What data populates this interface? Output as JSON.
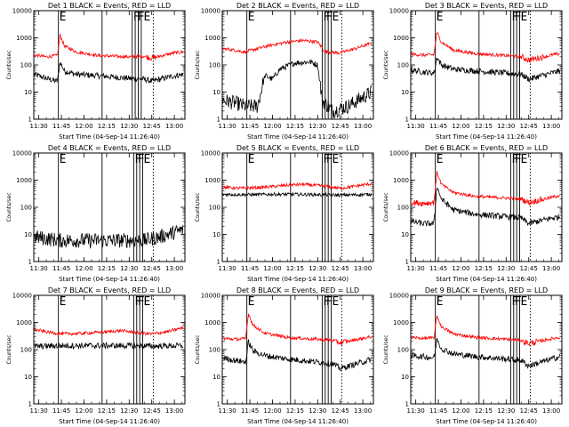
{
  "chart_data": [
    {
      "type": "line",
      "title": "Det 1 BLACK = Events, RED = LLD",
      "ylabel": "Counts/sec",
      "xlabel": "Start Time (04-Sep-14 11:26:40)",
      "x_ticks": [
        "11:30",
        "11:45",
        "12:00",
        "12:15",
        "12:30",
        "12:45",
        "13:00"
      ],
      "y_ticks": [
        "1",
        "10",
        "100",
        "1000",
        "10000"
      ],
      "ylim": [
        1,
        10000
      ],
      "yscale": "log",
      "markers": [
        "E",
        "F",
        "F",
        "E"
      ],
      "marker_x": [
        "11:43",
        "12:32",
        "12:35",
        "12:39"
      ],
      "solid_vlines": [
        "11:43",
        "12:12",
        "12:32",
        "12:34",
        "12:36",
        "12:38"
      ],
      "dotted_vlines": [
        "12:46"
      ],
      "series": [
        {
          "color": "#000000",
          "x": [
            "11:27",
            "11:35",
            "11:42",
            "11:43",
            "11:44",
            "11:47",
            "11:55",
            "12:10",
            "12:30",
            "12:40",
            "12:45",
            "13:00",
            "13:06"
          ],
          "values": [
            45,
            32,
            25,
            40,
            130,
            60,
            45,
            40,
            32,
            30,
            25,
            40,
            45
          ]
        },
        {
          "color": "#ff0000",
          "x": [
            "11:27",
            "11:35",
            "11:42",
            "11:43",
            "11:44",
            "11:47",
            "11:55",
            "12:10",
            "12:30",
            "12:40",
            "12:45",
            "13:00",
            "13:06"
          ],
          "values": [
            230,
            200,
            220,
            350,
            1300,
            500,
            300,
            220,
            200,
            210,
            180,
            280,
            300
          ]
        }
      ]
    },
    {
      "type": "line",
      "title": "Det 2 BLACK = Events, RED = LLD",
      "ylabel": "Counts/sec",
      "xlabel": "Start Time (04-Sep-14 11:26:40)",
      "x_ticks": [
        "11:30",
        "11:45",
        "12:00",
        "12:15",
        "12:30",
        "12:45",
        "13:00"
      ],
      "y_ticks": [
        "1",
        "10",
        "100",
        "1000",
        "10000"
      ],
      "ylim": [
        1,
        10000
      ],
      "yscale": "log",
      "markers": [
        "E",
        "F",
        "F",
        "E"
      ],
      "marker_x": [
        "11:43",
        "12:33",
        "12:35",
        "12:39"
      ],
      "solid_vlines": [
        "11:43",
        "12:12",
        "12:33",
        "12:35",
        "12:37",
        "12:39"
      ],
      "dotted_vlines": [
        "12:46"
      ],
      "series": [
        {
          "color": "#000000",
          "x": [
            "11:27",
            "11:35",
            "11:42",
            "11:50",
            "11:55",
            "12:00",
            "12:05",
            "12:15",
            "12:25",
            "12:30",
            "12:33",
            "12:40",
            "12:50",
            "13:06"
          ],
          "values": [
            5,
            4,
            3,
            3,
            40,
            30,
            70,
            120,
            130,
            100,
            5,
            2,
            3,
            10
          ]
        },
        {
          "color": "#ff0000",
          "x": [
            "11:27",
            "11:35",
            "11:42",
            "11:50",
            "12:00",
            "12:10",
            "12:20",
            "12:30",
            "12:35",
            "12:45",
            "12:55",
            "13:06"
          ],
          "values": [
            400,
            350,
            300,
            400,
            550,
            700,
            800,
            700,
            300,
            280,
            400,
            650
          ]
        }
      ]
    },
    {
      "type": "line",
      "title": "Det 3 BLACK = Events, RED = LLD",
      "ylabel": "Counts/sec",
      "xlabel": "Start Time (04-Sep-14 11:26:40)",
      "x_ticks": [
        "11:30",
        "11:45",
        "12:00",
        "12:15",
        "12:30",
        "12:45",
        "13:00"
      ],
      "y_ticks": [
        "1",
        "10",
        "100",
        "1000",
        "10000"
      ],
      "ylim": [
        1,
        10000
      ],
      "yscale": "log",
      "markers": [
        "E",
        "F",
        "F",
        "E"
      ],
      "marker_x": [
        "11:43",
        "12:33",
        "12:35",
        "12:39"
      ],
      "solid_vlines": [
        "11:43",
        "12:12",
        "12:33",
        "12:35",
        "12:37",
        "12:39"
      ],
      "dotted_vlines": [
        "12:46"
      ],
      "series": [
        {
          "color": "#000000",
          "x": [
            "11:27",
            "11:35",
            "11:42",
            "11:43",
            "11:44",
            "11:47",
            "11:55",
            "12:10",
            "12:30",
            "12:40",
            "12:45",
            "13:00",
            "13:06"
          ],
          "values": [
            65,
            55,
            50,
            80,
            200,
            100,
            70,
            60,
            50,
            45,
            30,
            50,
            60
          ]
        },
        {
          "color": "#ff0000",
          "x": [
            "11:27",
            "11:35",
            "11:42",
            "11:43",
            "11:44",
            "11:47",
            "11:55",
            "12:10",
            "12:30",
            "12:40",
            "12:45",
            "13:00",
            "13:06"
          ],
          "values": [
            250,
            230,
            240,
            600,
            1600,
            700,
            350,
            260,
            220,
            200,
            150,
            230,
            260
          ]
        }
      ]
    },
    {
      "type": "line",
      "title": "Det 4 BLACK = Events, RED = LLD",
      "ylabel": "Counts/sec",
      "xlabel": "Start Time (04-Sep-14 11:26:40)",
      "x_ticks": [
        "11:30",
        "11:45",
        "12:00",
        "12:15",
        "12:30",
        "12:45",
        "13:00"
      ],
      "y_ticks": [
        "1",
        "10",
        "100",
        "1000",
        "10000"
      ],
      "ylim": [
        1,
        10000
      ],
      "yscale": "log",
      "markers": [
        "E",
        "F",
        "F",
        "E"
      ],
      "marker_x": [
        "11:43",
        "12:33",
        "12:35",
        "12:39"
      ],
      "solid_vlines": [
        "11:43",
        "12:12",
        "12:33",
        "12:35",
        "12:37",
        "12:39"
      ],
      "dotted_vlines": [
        "12:46"
      ],
      "series": [
        {
          "color": "#000000",
          "x": [
            "11:27",
            "11:35",
            "11:45",
            "12:00",
            "12:15",
            "12:30",
            "12:40",
            "12:50",
            "13:00",
            "13:06"
          ],
          "values": [
            8,
            7,
            6,
            6,
            6,
            6,
            6,
            8,
            12,
            15
          ]
        }
      ]
    },
    {
      "type": "line",
      "title": "Det 5 BLACK = Events, RED = LLD",
      "ylabel": "Counts/sec",
      "xlabel": "Start Time (04-Sep-14 11:26:40)",
      "x_ticks": [
        "11:30",
        "11:45",
        "12:00",
        "12:15",
        "12:30",
        "12:45",
        "13:00"
      ],
      "y_ticks": [
        "1",
        "10",
        "100",
        "1000",
        "10000"
      ],
      "ylim": [
        1,
        10000
      ],
      "yscale": "log",
      "markers": [
        "E",
        "F",
        "F",
        "E"
      ],
      "marker_x": [
        "11:43",
        "12:33",
        "12:35",
        "12:39"
      ],
      "solid_vlines": [
        "11:43",
        "12:12",
        "12:33",
        "12:35",
        "12:37",
        "12:39"
      ],
      "dotted_vlines": [
        "12:46"
      ],
      "series": [
        {
          "color": "#000000",
          "x": [
            "11:27",
            "11:45",
            "12:00",
            "12:15",
            "12:30",
            "12:45",
            "13:06"
          ],
          "values": [
            300,
            290,
            300,
            300,
            290,
            280,
            300
          ]
        },
        {
          "color": "#ff0000",
          "x": [
            "11:27",
            "11:40",
            "11:55",
            "12:10",
            "12:20",
            "12:35",
            "12:45",
            "12:55",
            "13:06"
          ],
          "values": [
            550,
            500,
            550,
            650,
            700,
            600,
            500,
            600,
            750
          ]
        }
      ]
    },
    {
      "type": "line",
      "title": "Det 6 BLACK = Events, RED = LLD",
      "ylabel": "Counts/sec",
      "xlabel": "Start Time (04-Sep-14 11:26:40)",
      "x_ticks": [
        "11:30",
        "11:45",
        "12:00",
        "12:15",
        "12:30",
        "12:45",
        "13:00"
      ],
      "y_ticks": [
        "1",
        "10",
        "100",
        "1000",
        "10000"
      ],
      "ylim": [
        1,
        10000
      ],
      "yscale": "log",
      "markers": [
        "E",
        "F",
        "F",
        "E"
      ],
      "marker_x": [
        "11:43",
        "12:33",
        "12:35",
        "12:39"
      ],
      "solid_vlines": [
        "11:43",
        "12:12",
        "12:33",
        "12:35",
        "12:37",
        "12:39"
      ],
      "dotted_vlines": [
        "12:46"
      ],
      "series": [
        {
          "color": "#000000",
          "x": [
            "11:27",
            "11:35",
            "11:42",
            "11:43",
            "11:44",
            "11:47",
            "11:55",
            "12:10",
            "12:30",
            "12:40",
            "12:45",
            "13:00",
            "13:06"
          ],
          "values": [
            30,
            25,
            25,
            100,
            600,
            200,
            80,
            55,
            45,
            40,
            25,
            40,
            45
          ]
        },
        {
          "color": "#ff0000",
          "x": [
            "11:27",
            "11:35",
            "11:42",
            "11:43",
            "11:44",
            "11:47",
            "11:55",
            "12:10",
            "12:30",
            "12:40",
            "12:45",
            "13:00",
            "13:06"
          ],
          "values": [
            150,
            140,
            150,
            500,
            2000,
            700,
            350,
            250,
            220,
            200,
            150,
            230,
            280
          ]
        }
      ]
    },
    {
      "type": "line",
      "title": "Det 7 BLACK = Events, RED = LLD",
      "ylabel": "Counts/sec",
      "xlabel": "Start Time (04-Sep-14 11:26:40)",
      "x_ticks": [
        "11:30",
        "11:45",
        "12:00",
        "12:15",
        "12:30",
        "12:45",
        "13:00"
      ],
      "y_ticks": [
        "1",
        "10",
        "100",
        "1000",
        "10000"
      ],
      "ylim": [
        1,
        10000
      ],
      "yscale": "log",
      "markers": [
        "E",
        "F",
        "F",
        "E"
      ],
      "marker_x": [
        "11:43",
        "12:33",
        "12:35",
        "12:39"
      ],
      "solid_vlines": [
        "11:43",
        "12:12",
        "12:33",
        "12:35",
        "12:37",
        "12:39"
      ],
      "dotted_vlines": [
        "12:46"
      ],
      "series": [
        {
          "color": "#000000",
          "x": [
            "11:27",
            "11:45",
            "12:00",
            "12:15",
            "12:30",
            "12:45",
            "13:06"
          ],
          "values": [
            130,
            140,
            140,
            140,
            140,
            135,
            140
          ]
        },
        {
          "color": "#ff0000",
          "x": [
            "11:27",
            "11:35",
            "11:45",
            "12:00",
            "12:15",
            "12:25",
            "12:35",
            "12:45",
            "12:55",
            "13:06"
          ],
          "values": [
            550,
            450,
            380,
            400,
            450,
            500,
            420,
            380,
            450,
            650
          ]
        }
      ]
    },
    {
      "type": "line",
      "title": "Det 8 BLACK = Events, RED = LLD",
      "ylabel": "Counts/sec",
      "xlabel": "Start Time (04-Sep-14 11:26:40)",
      "x_ticks": [
        "11:30",
        "11:45",
        "12:00",
        "12:15",
        "12:30",
        "12:45",
        "13:00"
      ],
      "y_ticks": [
        "1",
        "10",
        "100",
        "1000",
        "10000"
      ],
      "ylim": [
        1,
        10000
      ],
      "yscale": "log",
      "markers": [
        "E",
        "F",
        "F",
        "E"
      ],
      "marker_x": [
        "11:43",
        "12:33",
        "12:35",
        "12:39"
      ],
      "solid_vlines": [
        "11:43",
        "12:12",
        "12:33",
        "12:35",
        "12:37",
        "12:39"
      ],
      "dotted_vlines": [
        "12:46"
      ],
      "series": [
        {
          "color": "#000000",
          "x": [
            "11:27",
            "11:35",
            "11:42",
            "11:43",
            "11:44",
            "11:47",
            "11:55",
            "12:10",
            "12:30",
            "12:40",
            "12:45",
            "13:00",
            "13:06"
          ],
          "values": [
            50,
            40,
            35,
            60,
            200,
            90,
            60,
            45,
            35,
            30,
            20,
            35,
            45
          ]
        },
        {
          "color": "#ff0000",
          "x": [
            "11:27",
            "11:35",
            "11:42",
            "11:43",
            "11:44",
            "11:47",
            "11:55",
            "12:10",
            "12:30",
            "12:40",
            "12:45",
            "13:00",
            "13:06"
          ],
          "values": [
            260,
            240,
            250,
            600,
            2200,
            800,
            400,
            280,
            240,
            220,
            180,
            260,
            300
          ]
        }
      ]
    },
    {
      "type": "line",
      "title": "Det 9 BLACK = Events, RED = LLD",
      "ylabel": "Counts/sec",
      "xlabel": "Start Time (04-Sep-14 11:26:40)",
      "x_ticks": [
        "11:30",
        "11:45",
        "12:00",
        "12:15",
        "12:30",
        "12:45",
        "13:00"
      ],
      "y_ticks": [
        "1",
        "10",
        "100",
        "1000",
        "10000"
      ],
      "ylim": [
        1,
        10000
      ],
      "yscale": "log",
      "markers": [
        "E",
        "F",
        "F",
        "E"
      ],
      "marker_x": [
        "11:43",
        "12:33",
        "12:35",
        "12:39"
      ],
      "solid_vlines": [
        "11:43",
        "12:12",
        "12:33",
        "12:35",
        "12:37",
        "12:39"
      ],
      "dotted_vlines": [
        "12:46"
      ],
      "series": [
        {
          "color": "#000000",
          "x": [
            "11:27",
            "11:35",
            "11:42",
            "11:43",
            "11:44",
            "11:47",
            "11:55",
            "12:10",
            "12:30",
            "12:40",
            "12:45",
            "13:00",
            "13:06"
          ],
          "values": [
            60,
            55,
            50,
            90,
            250,
            110,
            70,
            55,
            45,
            40,
            25,
            45,
            55
          ]
        },
        {
          "color": "#ff0000",
          "x": [
            "11:27",
            "11:35",
            "11:42",
            "11:43",
            "11:44",
            "11:47",
            "11:55",
            "12:10",
            "12:30",
            "12:40",
            "12:45",
            "13:00",
            "13:06"
          ],
          "values": [
            280,
            260,
            270,
            600,
            1800,
            700,
            380,
            280,
            240,
            220,
            170,
            250,
            290
          ]
        }
      ]
    }
  ]
}
